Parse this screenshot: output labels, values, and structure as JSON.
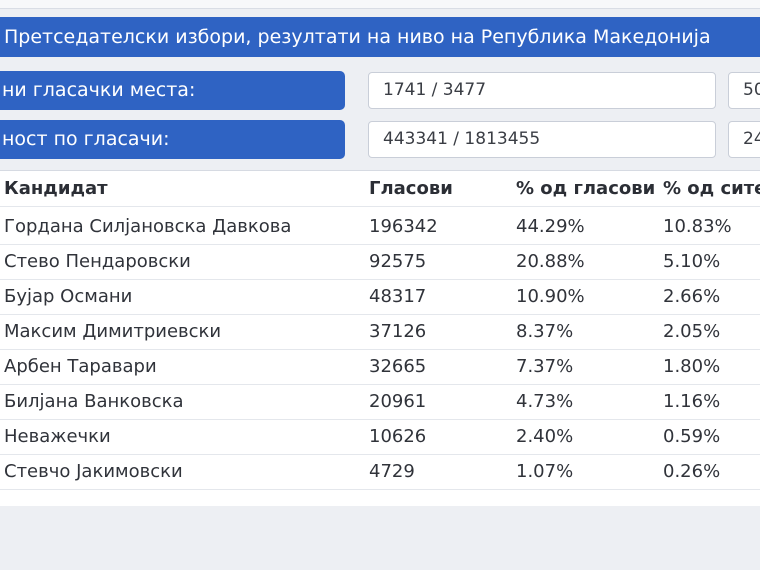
{
  "title": "Претседателски избори, резултати на ниво на Република Македонија",
  "stats": [
    {
      "label": "ни гласачки места:",
      "value": "1741 / 3477",
      "percent": "50"
    },
    {
      "label": "ност по гласачи:",
      "value": "443341 / 1813455",
      "percent": "24"
    }
  ],
  "table": {
    "headers": [
      "Кандидат",
      "Гласови",
      "% од гласови",
      "% од сите"
    ],
    "rows": [
      [
        "Гордана Силјановска Давкова",
        "196342",
        "44.29%",
        "10.83%"
      ],
      [
        "Стево Пендаровски",
        "92575",
        "20.88%",
        "5.10%"
      ],
      [
        "Бујар Османи",
        "48317",
        "10.90%",
        "2.66%"
      ],
      [
        "Максим Димитриевски",
        "37126",
        "8.37%",
        "2.05%"
      ],
      [
        "Арбен Таравари",
        "32665",
        "7.37%",
        "1.80%"
      ],
      [
        "Билјана Ванковска",
        "20961",
        "4.73%",
        "1.16%"
      ],
      [
        "Неважечки",
        "10626",
        "2.40%",
        "0.59%"
      ],
      [
        "Стевчо Јакимовски",
        "4729",
        "1.07%",
        "0.26%"
      ]
    ]
  },
  "colors": {
    "accent": "#2f63c3",
    "background": "#edeff3"
  }
}
